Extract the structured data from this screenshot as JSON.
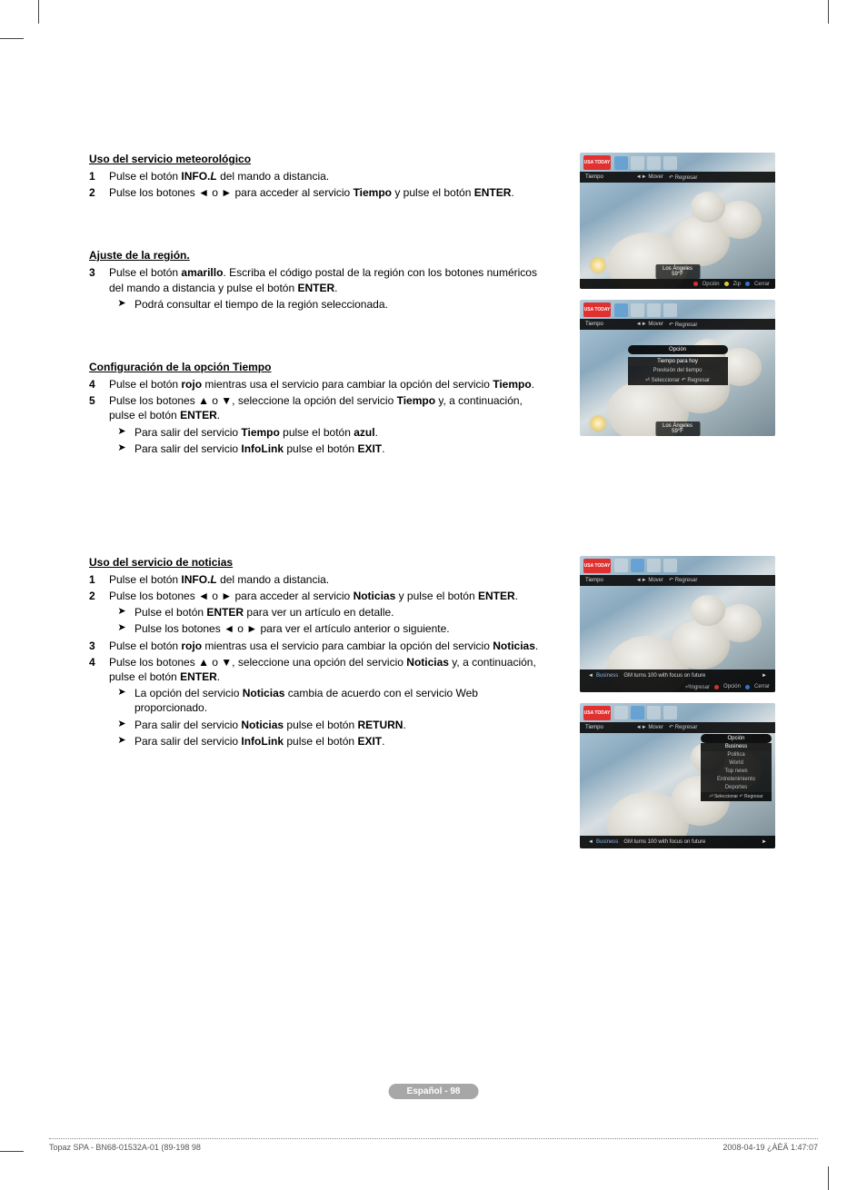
{
  "crop": {
    "visible": true
  },
  "sections": {
    "weather": {
      "title": "Uso del servicio meteorológico",
      "steps": [
        {
          "n": "1",
          "html": "Pulse el botón <b>INFO.<i>L</i></b> del mando a distancia."
        },
        {
          "n": "2",
          "html": "Pulse los botones ◄ o ► para acceder al servicio <b>Tiempo</b> y pulse el botón <b>ENTER</b>."
        }
      ]
    },
    "region": {
      "title": "Ajuste de la región.",
      "steps": [
        {
          "n": "3",
          "html": "Pulse el botón <b>amarillo</b>. Escriba el código postal de la región con los botones numéricos del mando a distancia y pulse el botón <b>ENTER</b>.",
          "subs": [
            "Podrá consultar el tiempo de la región seleccionada."
          ]
        }
      ]
    },
    "timeopt": {
      "title": "Configuración de la opción Tiempo",
      "steps": [
        {
          "n": "4",
          "html": "Pulse el botón <b>rojo</b> mientras usa el servicio para cambiar la opción del servicio <b>Tiempo</b>."
        },
        {
          "n": "5",
          "html": "Pulse los botones ▲ o ▼, seleccione la opción del servicio <b>Tiempo</b> y, a continuación, pulse el botón <b>ENTER</b>.",
          "subs": [
            "Para salir del servicio <b>Tiempo</b> pulse el botón <b>azul</b>.",
            "Para salir del servicio <b>InfoLink</b> pulse el botón <b>EXIT</b>."
          ]
        }
      ]
    },
    "news": {
      "title": "Uso del servicio de noticias",
      "steps": [
        {
          "n": "1",
          "html": "Pulse el botón <b>INFO.<i>L</i></b> del mando a distancia."
        },
        {
          "n": "2",
          "html": "Pulse los botones ◄ o ► para acceder al servicio <b>Noticias</b> y pulse el botón <b>ENTER</b>.",
          "subs": [
            "Pulse el botón <b>ENTER</b> para ver un artículo en detalle.",
            "Pulse los botones ◄ o ► para ver el artículo anterior o siguiente."
          ]
        },
        {
          "n": "3",
          "html": "Pulse el botón <b>rojo</b> mientras usa el servicio para cambiar la opción del servicio <b>Noticias</b>."
        },
        {
          "n": "4",
          "html": "Pulse los botones ▲ o ▼, seleccione una opción del servicio <b>Noticias</b> y, a continuación, pulse el botón <b>ENTER</b>.",
          "subs": [
            "La opción del servicio <b>Noticias</b> cambia de acuerdo con el servicio Web proporcionado.",
            "Para salir del servicio <b>Noticias</b> pulse el botón <b>RETURN</b>.",
            "Para salir del servicio <b>InfoLink</b> pulse el botón <b>EXIT</b>."
          ]
        }
      ]
    }
  },
  "figures": {
    "common": {
      "logo": "USA TODAY",
      "subbar_label": "Tiempo",
      "subbar_mover": "◄► Mover",
      "subbar_back": "↶ Regresar"
    },
    "fig1": {
      "city": "Los Ángeles",
      "temp": "59°F",
      "foot": [
        {
          "dot": "r",
          "t": "Opción"
        },
        {
          "dot": "y",
          "t": "Zip"
        },
        {
          "dot": "b",
          "t": "Cerrar"
        }
      ]
    },
    "fig2": {
      "menu_title": "Opción",
      "menu_items": [
        {
          "t": "Tiempo para hoy",
          "sel": true
        },
        {
          "t": "Previsión del tiempo",
          "sel": false
        }
      ],
      "menu_hint": "⏎ Seleccionar  ↶ Regresar",
      "city": "Los Ángeles",
      "temp": "59°F"
    },
    "fig3": {
      "caption_biz": "Business",
      "caption_text": "GM turns 100 with focus on future",
      "foot": [
        {
          "dot": null,
          "t": "⏎Ingresar"
        },
        {
          "dot": "r",
          "t": "Opción"
        },
        {
          "dot": "b",
          "t": "Cerrar"
        }
      ]
    },
    "fig4": {
      "menu_title": "Opción",
      "menu_items": [
        {
          "t": "Business",
          "sel": true
        },
        {
          "t": "Politica",
          "sel": false
        },
        {
          "t": "World",
          "sel": false
        },
        {
          "t": "Top news",
          "sel": false
        },
        {
          "t": "Entretenimiento",
          "sel": false
        },
        {
          "t": "Deportes",
          "sel": false
        }
      ],
      "menu_hint": "⏎ Seleccionar  ↶ Regresar",
      "caption_biz": "Business",
      "caption_text": "GM turns 100 with focus on future"
    }
  },
  "page_pill": "Español - 98",
  "footer_left": "Topaz SPA - BN68-01532A-01 (89-198   98",
  "footer_right": "2008-04-19   ¿ÀÈÄ 1:47:07"
}
